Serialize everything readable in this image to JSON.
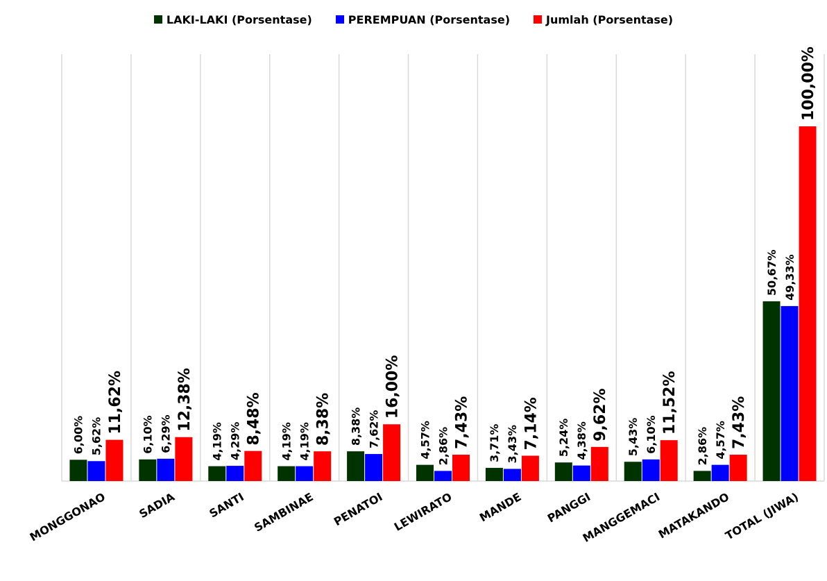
{
  "chart_data": {
    "type": "bar",
    "title": "",
    "xlabel": "",
    "ylabel": "",
    "ylim": [
      0,
      125
    ],
    "legend_position": "top",
    "grid": "vertical category separators",
    "categories": [
      "MONGGONAO",
      "SADIA",
      "SANTI",
      "SAMBINAE",
      "PENATOI",
      "LEWIRATO",
      "MANDE",
      "PANGGI",
      "MANGGEMACI",
      "MATAKANDO",
      "TOTAL (JIWA)"
    ],
    "series": [
      {
        "name": "LAKI-LAKI (Porsentase)",
        "color": "#003300",
        "values": [
          6.0,
          6.1,
          4.19,
          4.19,
          8.38,
          4.57,
          3.71,
          5.24,
          5.43,
          2.86,
          50.67
        ],
        "labels": [
          "6,00%",
          "6,10%",
          "4,19%",
          "4,19%",
          "8,38%",
          "4,57%",
          "3,71%",
          "5,24%",
          "5,43%",
          "2,86%",
          "50,67%"
        ]
      },
      {
        "name": "PEREMPUAN (Porsentase)",
        "color": "#0000ff",
        "values": [
          5.62,
          6.29,
          4.29,
          4.19,
          7.62,
          2.86,
          3.43,
          4.38,
          6.1,
          4.57,
          49.33
        ],
        "labels": [
          "5,62%",
          "6,29%",
          "4,29%",
          "4,19%",
          "7,62%",
          "2,86%",
          "3,43%",
          "4,38%",
          "6,10%",
          "4,57%",
          "49,33%"
        ]
      },
      {
        "name": "Jumlah (Porsentase)",
        "color": "#ff0000",
        "values": [
          11.62,
          12.38,
          8.48,
          8.38,
          16.0,
          7.43,
          7.14,
          9.62,
          11.52,
          7.43,
          100.0
        ],
        "labels": [
          "11,62%",
          "12,38%",
          "8,48%",
          "8,38%",
          "16,00%",
          "7,43%",
          "7,14%",
          "9,62%",
          "11,52%",
          "7,43%",
          "100,00%"
        ]
      }
    ]
  }
}
